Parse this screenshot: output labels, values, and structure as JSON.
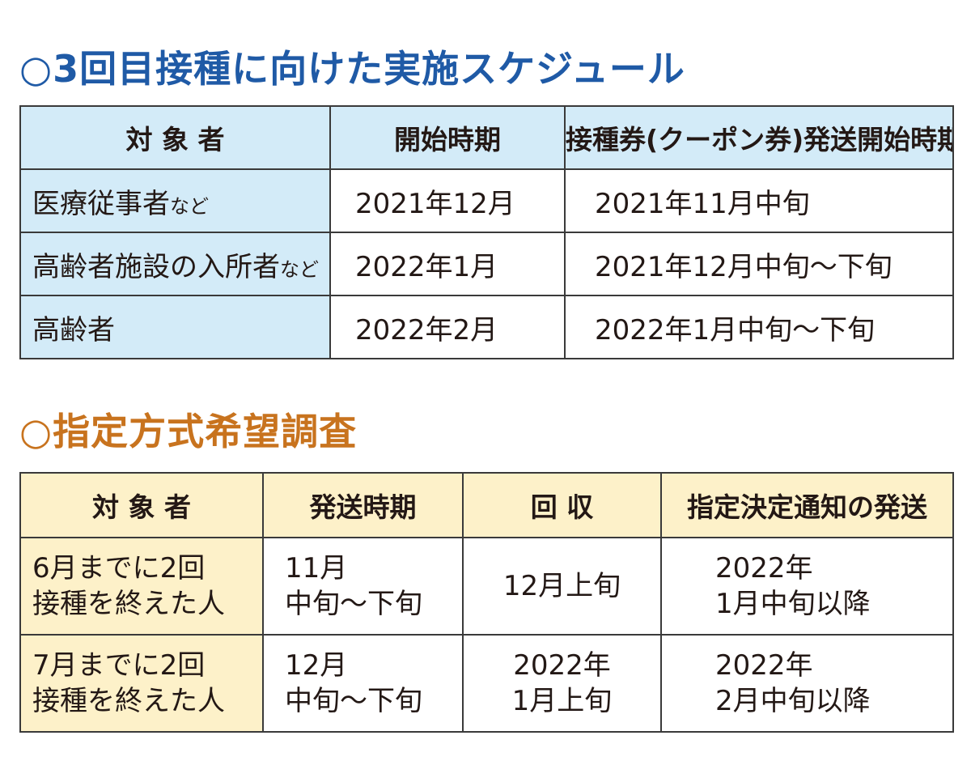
{
  "section1": {
    "title": "○3回目接種に向けた実施スケジュール",
    "headers": [
      "対 象 者",
      "開始時期",
      "接種券(クーポン券)発送開始時期"
    ],
    "rows": [
      {
        "target": "医療従事者",
        "target_suffix": "など",
        "start": "2021年12月",
        "coupon": "2021年11月中旬"
      },
      {
        "target": "高齢者施設の入所者",
        "target_suffix": "など",
        "start": "2022年1月",
        "coupon": "2021年12月中旬〜下旬"
      },
      {
        "target": "高齢者",
        "target_suffix": "",
        "start": "2022年2月",
        "coupon": "2022年1月中旬〜下旬"
      }
    ]
  },
  "section2": {
    "title": "○指定方式希望調査",
    "headers": [
      "対 象 者",
      "発送時期",
      "回 収",
      "指定決定通知の発送"
    ],
    "rows": [
      {
        "target": [
          "6月までに2回",
          "接種を終えた人"
        ],
        "send": [
          "11月",
          "中旬〜下旬"
        ],
        "collect": [
          "12月上旬"
        ],
        "notice": [
          "2022年",
          "1月中旬以降"
        ]
      },
      {
        "target": [
          "7月までに2回",
          "接種を終えた人"
        ],
        "send": [
          "12月",
          "中旬〜下旬"
        ],
        "collect": [
          "2022年",
          "1月上旬"
        ],
        "notice": [
          "2022年",
          "2月中旬以降"
        ]
      }
    ]
  }
}
